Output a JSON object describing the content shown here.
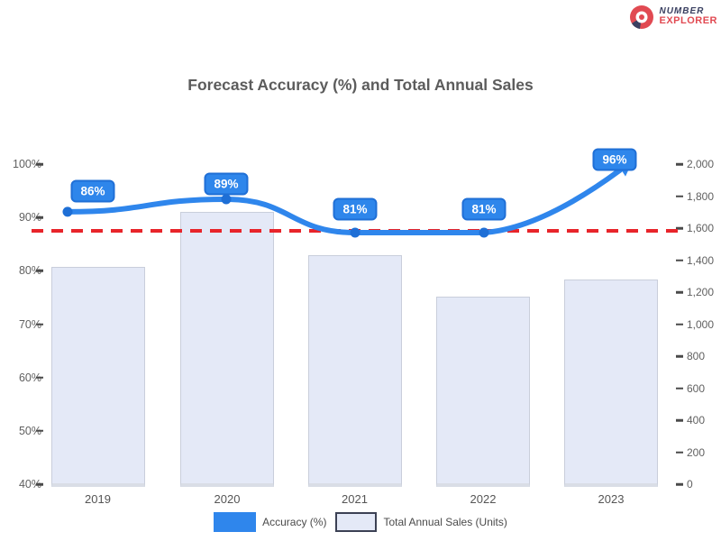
{
  "logo": {
    "icon": "shutter-icon",
    "line1": "NUMBER",
    "line2": "EXPLORER"
  },
  "title": "Forecast Accuracy (%) and Total Annual Sales",
  "chart_data": {
    "type": "combo-bar-line",
    "categories": [
      "2019",
      "2020",
      "2021",
      "2022",
      "2023"
    ],
    "series": [
      {
        "name": "Accuracy (%)",
        "type": "line",
        "axis": "left",
        "values": [
          86,
          89,
          81,
          81,
          96
        ],
        "point_labels": [
          "86%",
          "89%",
          "81%",
          "81%",
          "96%"
        ],
        "color": "#2f86ec"
      },
      {
        "name": "Total Annual Sales (Units)",
        "type": "bar",
        "axis": "right",
        "values": [
          1360,
          1700,
          1430,
          1170,
          1280
        ],
        "color": "#e4e9f7",
        "border_color": "#c9cedb"
      }
    ],
    "threshold_line": {
      "value": 82,
      "axis": "left",
      "style": "dashed",
      "color": "#e8242a"
    },
    "left_axis": {
      "range": [
        40,
        100
      ],
      "unit": "%",
      "ticks": [
        "100%",
        "90%",
        "80%",
        "70%",
        "60%",
        "50%",
        "40%"
      ]
    },
    "right_axis": {
      "range": [
        0,
        2000
      ],
      "ticks": [
        "2,000",
        "1,800",
        "1,600",
        "1,400",
        "1,200",
        "1,000",
        "800",
        "600",
        "400",
        "200",
        "0"
      ]
    },
    "legend": [
      {
        "label": "Accuracy (%)",
        "swatch": "blue-fill"
      },
      {
        "label": "Total Annual Sales (Units)",
        "swatch": "lavender-outline"
      }
    ],
    "grid": "off",
    "legend_position": "bottom-center"
  },
  "colors": {
    "line_blue": "#2f86ec",
    "marker_blue": "#1e6fd6",
    "label_fill": "#2e86eb",
    "label_border": "#1f6fd6",
    "threshold_red": "#e8242a",
    "bar_fill": "#e4e9f7",
    "bar_border": "#c9cedb",
    "text_gray": "#5c5c5c",
    "logo_navy": "#3a4061",
    "logo_red": "#e14a52"
  }
}
